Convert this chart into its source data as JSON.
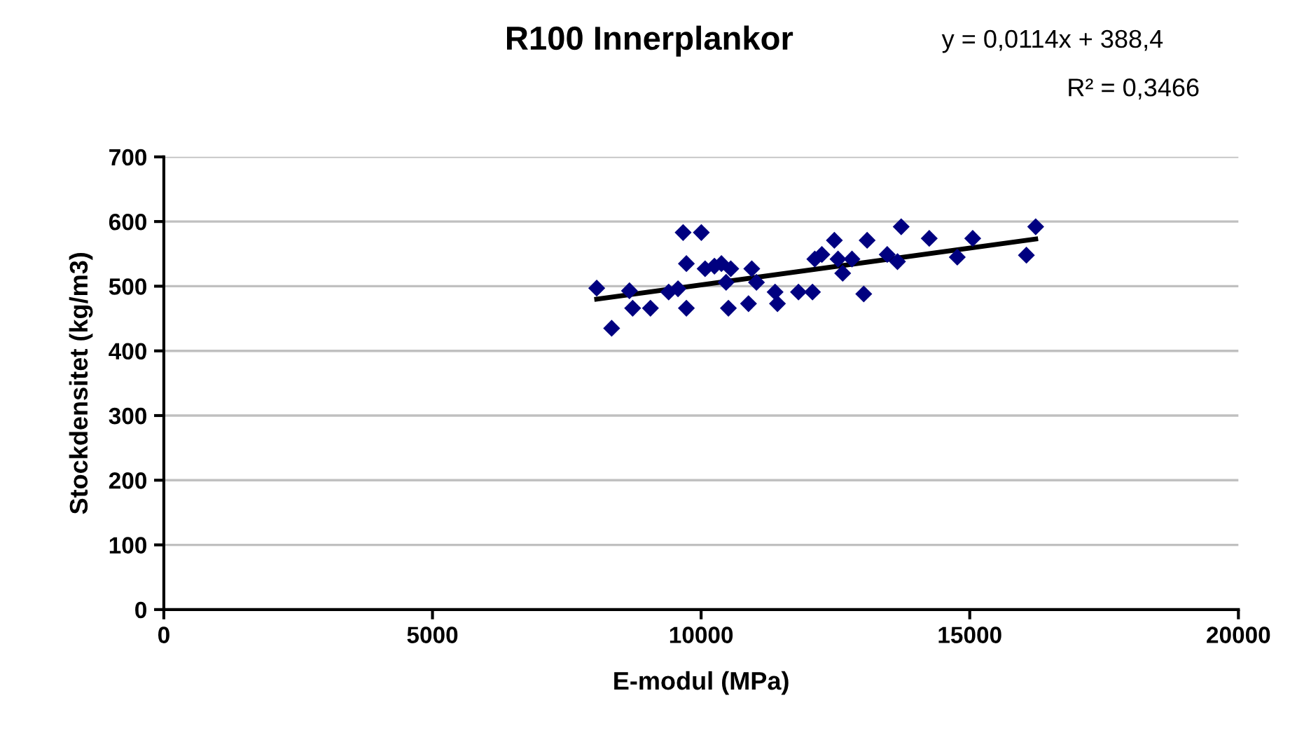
{
  "chart_data": {
    "type": "scatter",
    "title": "R100 Innerplankor",
    "xlabel": "E-modul (MPa)",
    "ylabel": "Stockdensitet (kg/m3)",
    "annotations": [
      "y = 0,0114x + 388,4",
      "R² = 0,3466"
    ],
    "series": [
      {
        "color": "#000080",
        "marker": "diamond",
        "x": [
          8057,
          8335,
          8666,
          8726,
          9057,
          9396,
          9570,
          9665,
          10004,
          9726,
          9726,
          10074,
          10248,
          10378,
          10552,
          10465,
          10508,
          10943,
          11030,
          10882,
          11377,
          11421,
          11812,
          12073,
          12116,
          12247,
          12480,
          12548,
          12635,
          12808,
          13027,
          13090,
          13464,
          13655,
          13724,
          14246,
          14768,
          15055,
          16054,
          16227
        ],
        "values": [
          497,
          435,
          493,
          466,
          466,
          491,
          496,
          583,
          583,
          535,
          466,
          527,
          531,
          535,
          527,
          506,
          466,
          527,
          506,
          473,
          491,
          473,
          491,
          491,
          542,
          549,
          571,
          542,
          520,
          542,
          488,
          571,
          549,
          538,
          592,
          574,
          545,
          574,
          548,
          592
        ]
      },
      {
        "type": "line",
        "color": "#000000",
        "marker": "none",
        "line_style": "solid",
        "x": [
          8057,
          16227
        ],
        "values": [
          480,
          573
        ]
      }
    ],
    "xlim": [
      0,
      20000
    ],
    "xticks": [
      0,
      5000,
      10000,
      15000,
      20000
    ],
    "ylim": [
      0,
      700
    ],
    "yticks": [
      0,
      100,
      200,
      300,
      400,
      500,
      600,
      700
    ],
    "grid": "y",
    "legend": false
  }
}
